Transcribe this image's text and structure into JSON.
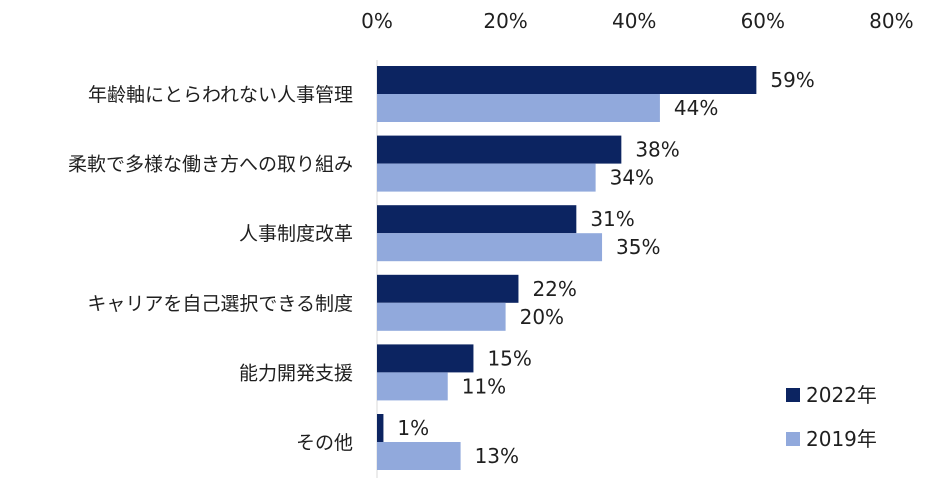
{
  "chart_data": {
    "type": "bar",
    "orientation": "horizontal",
    "categories": [
      "年齢軸にとらわれない人事管理",
      "柔軟で多様な働き方への取り組み",
      "人事制度改革",
      "キャリアを自己選択できる制度",
      "能力開発支援",
      "その他"
    ],
    "series": [
      {
        "name": "2022年",
        "color": "#0c2461",
        "values": [
          59,
          38,
          31,
          22,
          15,
          1
        ]
      },
      {
        "name": "2019年",
        "color": "#91a9dc",
        "values": [
          44,
          34,
          35,
          20,
          11,
          13
        ]
      }
    ],
    "value_labels": [
      [
        "59%",
        "38%",
        "31%",
        "22%",
        "15%",
        "1%"
      ],
      [
        "44%",
        "34%",
        "35%",
        "20%",
        "11%",
        "13%"
      ]
    ],
    "x_ticks": [
      "0%",
      "20%",
      "40%",
      "60%",
      "80%"
    ],
    "xlim": [
      0,
      80
    ],
    "axis_position": "top",
    "grid": false,
    "legend_position": "bottom-right"
  }
}
